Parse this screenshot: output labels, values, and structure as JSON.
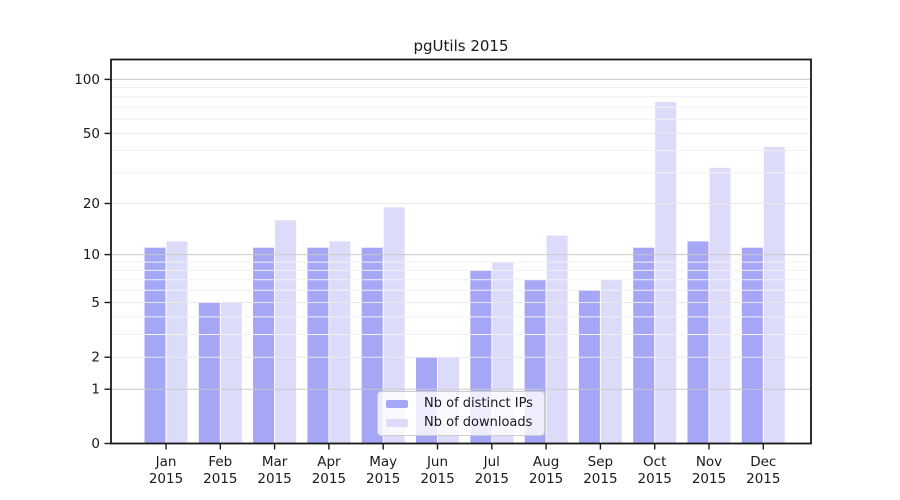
{
  "chart_data": {
    "type": "bar",
    "title": "pgUtils 2015",
    "categories": [
      "Jan",
      "Feb",
      "Mar",
      "Apr",
      "May",
      "Jun",
      "Jul",
      "Aug",
      "Sep",
      "Oct",
      "Nov",
      "Dec"
    ],
    "x_year": "2015",
    "series": [
      {
        "name": "Nb of distinct IPs",
        "color": "#a6a6f7",
        "values": [
          11,
          5,
          11,
          11,
          11,
          2,
          8,
          7,
          6,
          11,
          12,
          11
        ]
      },
      {
        "name": "Nb of downloads",
        "color": "#dcdcfa",
        "values": [
          12,
          5,
          16,
          12,
          19,
          2,
          9,
          13,
          7,
          75,
          32,
          42
        ]
      }
    ],
    "y_axis": {
      "scale": "symlog",
      "ticks": [
        0,
        1,
        2,
        5,
        10,
        20,
        50,
        100
      ],
      "decade_ticks": [
        1,
        10,
        100
      ],
      "minor_gridlines": [
        3,
        4,
        6,
        7,
        8,
        9,
        30,
        40,
        60,
        70,
        80,
        90
      ],
      "top_value": 127
    },
    "grid": true,
    "legend_position": "bottom-center-inside"
  }
}
